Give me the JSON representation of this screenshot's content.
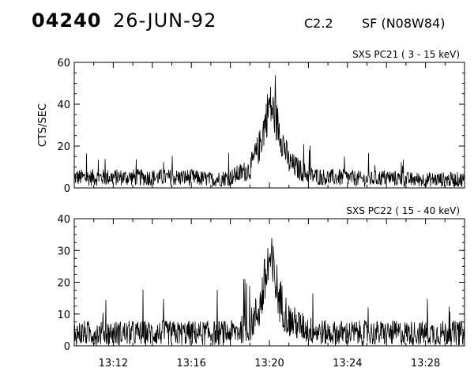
{
  "header": {
    "event_number": "04240",
    "date": "26-JUN-92",
    "flare_class": "C2.2",
    "flare_location": "SF (N08W84)"
  },
  "colors": {
    "line": "#000000",
    "background": "#ffffff"
  },
  "chart_data": [
    {
      "type": "line",
      "title": "SXS PC21  (  3 - 15 keV)",
      "xlabel": "",
      "ylabel": "CTS/SEC",
      "ylim": [
        0,
        60
      ],
      "yticks": [
        0,
        20,
        40,
        60
      ],
      "xlim": [
        "13:10",
        "13:30"
      ],
      "xticks": [
        "13:12",
        "13:16",
        "13:20",
        "13:24",
        "13:28"
      ],
      "grid": false,
      "series": [
        {
          "values_note_time": "13:10-13:30, 1-minute samples",
          "x": [
            "13:10",
            "13:11",
            "13:12",
            "13:13",
            "13:14",
            "13:15",
            "13:16",
            "13:17",
            "13:18",
            "13:19",
            "13:19:30",
            "13:20",
            "13:20:15",
            "13:20:30",
            "13:21",
            "13:22",
            "13:23",
            "13:24",
            "13:25",
            "13:26",
            "13:27",
            "13:28",
            "13:29",
            "13:30"
          ],
          "y": [
            5,
            5,
            5,
            5,
            5,
            5,
            5,
            4,
            5,
            9,
            20,
            40,
            35,
            28,
            12,
            6,
            5,
            5,
            4,
            5,
            4,
            4,
            4,
            4
          ]
        }
      ]
    },
    {
      "type": "line",
      "title": "SXS PC22  ( 15 - 40 keV)",
      "xlabel": "",
      "ylabel": "",
      "ylim": [
        0,
        40
      ],
      "yticks": [
        0,
        10,
        20,
        30,
        40
      ],
      "xlim": [
        "13:10",
        "13:30"
      ],
      "xticks": [
        "13:12",
        "13:16",
        "13:20",
        "13:24",
        "13:28"
      ],
      "grid": false,
      "series": [
        {
          "x": [
            "13:10",
            "13:11",
            "13:12",
            "13:13",
            "13:14",
            "13:15",
            "13:16",
            "13:17",
            "13:18",
            "13:19",
            "13:19:30",
            "13:20",
            "13:20:15",
            "13:20:30",
            "13:21",
            "13:22",
            "13:23",
            "13:24",
            "13:25",
            "13:26",
            "13:27",
            "13:28",
            "13:29",
            "13:30"
          ],
          "y": [
            4,
            4,
            4,
            4,
            4,
            4,
            4,
            4,
            4,
            6,
            12,
            27,
            22,
            15,
            8,
            5,
            4,
            4,
            4,
            4,
            4,
            4,
            4,
            4
          ]
        }
      ]
    }
  ]
}
